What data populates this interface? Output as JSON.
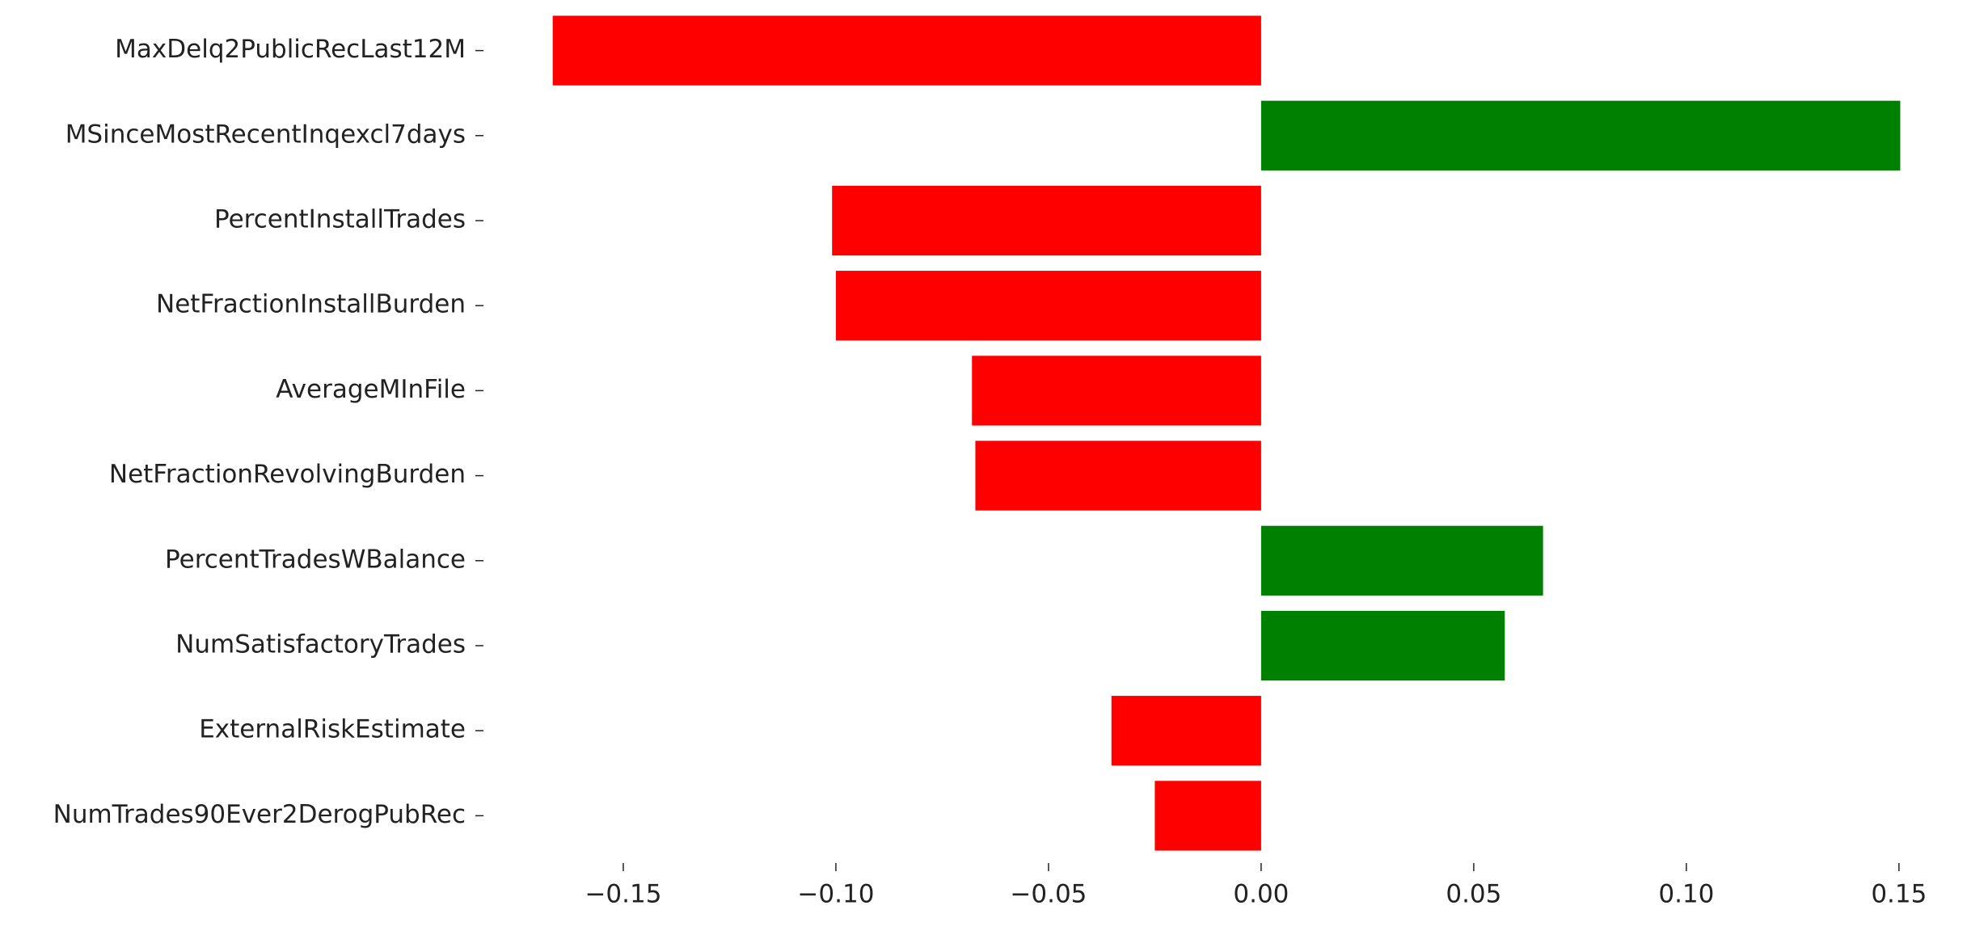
{
  "chart_data": {
    "type": "barh",
    "categories": [
      "MaxDelq2PublicRecLast12M",
      "MSinceMostRecentInqexcl7days",
      "PercentInstallTrades",
      "NetFractionInstallBurden",
      "AverageMInFile",
      "NetFractionRevolvingBurden",
      "PercentTradesWBalance",
      "NumSatisfactoryTrades",
      "ExternalRiskEstimate",
      "NumTrades90Ever2DerogPubRec"
    ],
    "values": [
      -0.1666,
      0.1503,
      -0.1009,
      -0.1,
      -0.068,
      -0.0672,
      0.0663,
      0.0573,
      -0.0352,
      -0.025
    ],
    "colors": [
      "#ff0000",
      "#008000",
      "#ff0000",
      "#ff0000",
      "#ff0000",
      "#ff0000",
      "#008000",
      "#008000",
      "#ff0000",
      "#ff0000"
    ],
    "xlim": [
      -0.1825,
      0.166
    ],
    "xticks": [
      {
        "value": -0.15,
        "label": "−0.15"
      },
      {
        "value": -0.1,
        "label": "−0.10"
      },
      {
        "value": -0.05,
        "label": "−0.05"
      },
      {
        "value": 0,
        "label": "0.00"
      },
      {
        "value": 0.05,
        "label": "0.05"
      },
      {
        "value": 0.1,
        "label": "0.10"
      },
      {
        "value": 0.15,
        "label": "0.15"
      }
    ]
  }
}
